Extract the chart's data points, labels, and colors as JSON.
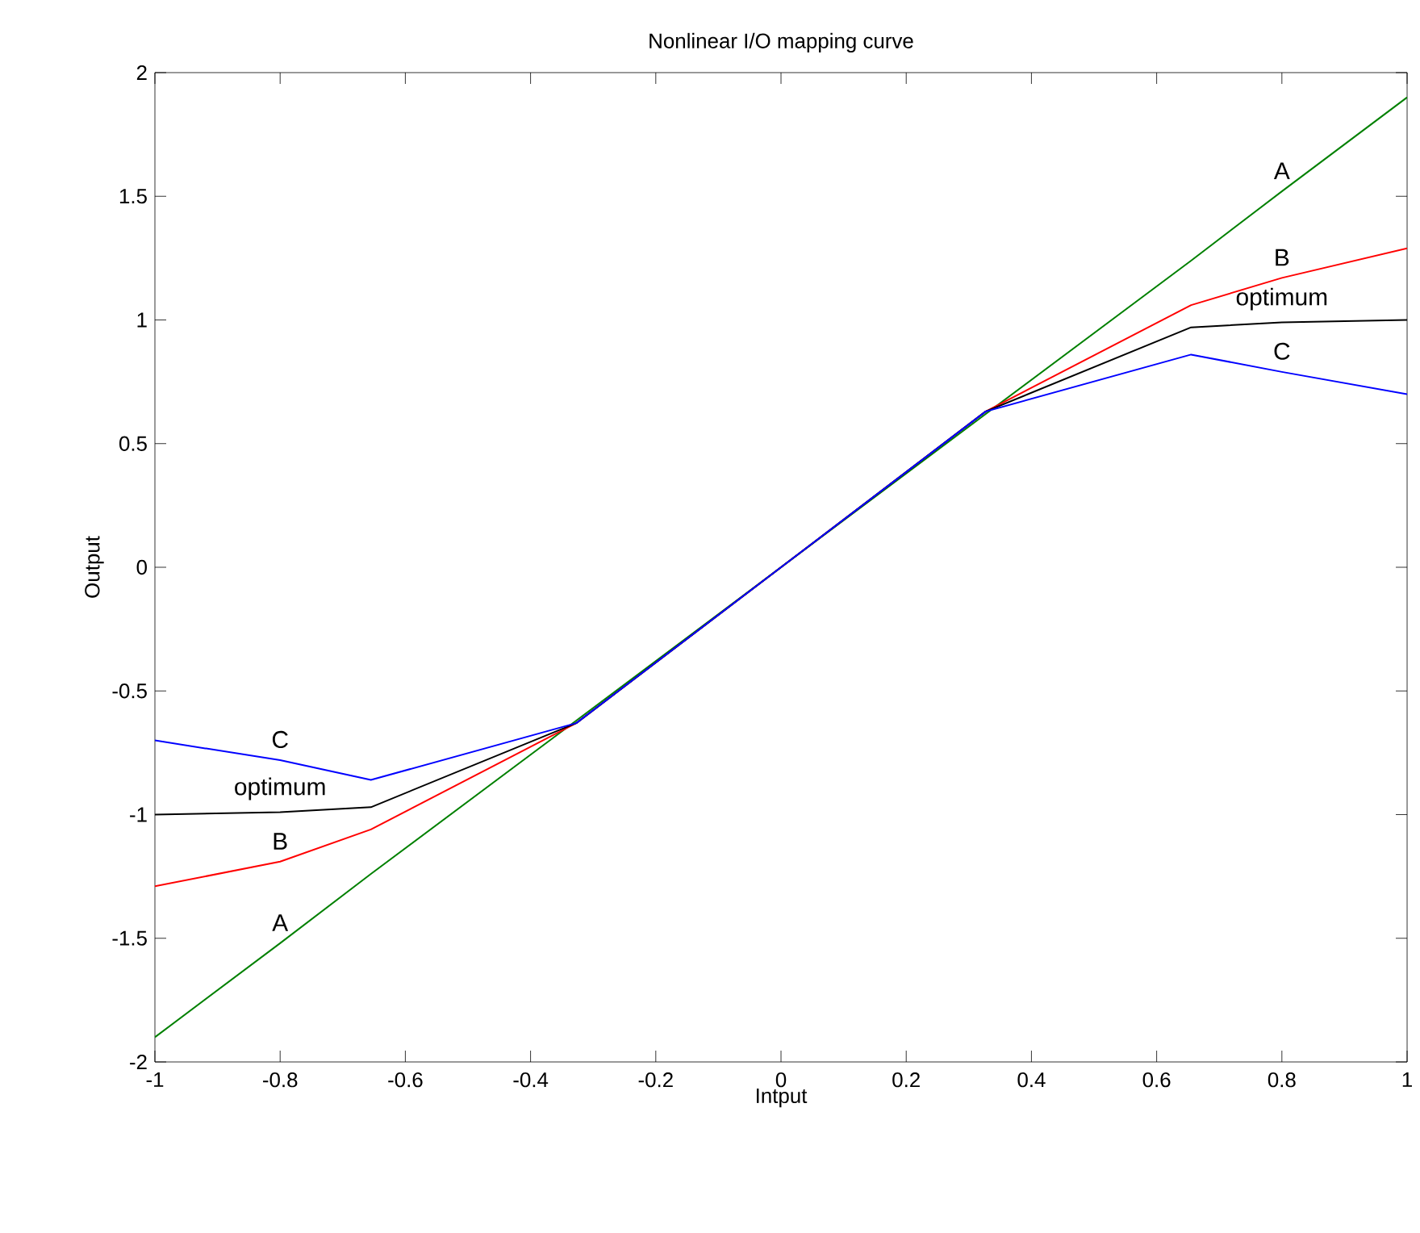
{
  "chart_data": {
    "type": "line",
    "title": "Nonlinear I/O mapping curve",
    "xlabel": "Intput",
    "ylabel": "Output",
    "x": [
      -1,
      -0.8,
      -0.655,
      -0.327,
      0,
      0.327,
      0.655,
      0.8,
      1
    ],
    "series": [
      {
        "name": "A",
        "color": "#008000",
        "values": [
          -1.9,
          -1.52,
          -1.24,
          -0.62,
          0,
          0.62,
          1.24,
          1.52,
          1.9
        ]
      },
      {
        "name": "B",
        "color": "#ff0000",
        "values": [
          -1.29,
          -1.19,
          -1.06,
          -0.63,
          0,
          0.63,
          1.06,
          1.17,
          1.29
        ]
      },
      {
        "name": "optimum",
        "color": "#000000",
        "values": [
          -1.0,
          -0.99,
          -0.97,
          -0.63,
          0,
          0.63,
          0.97,
          0.99,
          1.0
        ]
      },
      {
        "name": "C",
        "color": "#0000ff",
        "values": [
          -0.7,
          -0.78,
          -0.86,
          -0.63,
          0,
          0.63,
          0.86,
          0.79,
          0.7
        ]
      }
    ],
    "xlim": [
      -1,
      1
    ],
    "ylim": [
      -2,
      2
    ],
    "xticks": [
      -1,
      -0.8,
      -0.6,
      -0.4,
      -0.2,
      0,
      0.2,
      0.4,
      0.6,
      0.8,
      1
    ],
    "yticks": [
      -2,
      -1.5,
      -1,
      -0.5,
      0,
      0.5,
      1,
      1.5,
      2
    ],
    "marker": "none",
    "line_style": "solid"
  }
}
